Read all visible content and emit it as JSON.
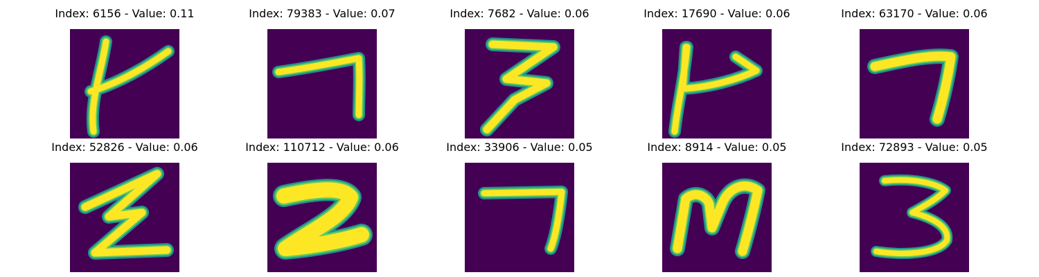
{
  "colors": {
    "background": "#440154",
    "stroke_core": "#fde725",
    "stroke_mid": "#5ec962",
    "stroke_edge": "#21918c"
  },
  "panels": [
    {
      "title": "Index: 6156 - Value: 0.11",
      "index": 6156,
      "value": 0.11,
      "glyph": "K"
    },
    {
      "title": "Index: 79383 - Value: 0.07",
      "index": 79383,
      "value": 0.07,
      "glyph": "7"
    },
    {
      "title": "Index: 7682 - Value: 0.06",
      "index": 7682,
      "value": 0.06,
      "glyph": "3"
    },
    {
      "title": "Index: 17690 - Value: 0.06",
      "index": 17690,
      "value": 0.06,
      "glyph": "P"
    },
    {
      "title": "Index: 63170 - Value: 0.06",
      "index": 63170,
      "value": 0.06,
      "glyph": "7"
    },
    {
      "title": "Index: 52826 - Value: 0.06",
      "index": 52826,
      "value": 0.06,
      "glyph": "Z"
    },
    {
      "title": "Index: 110712 - Value: 0.06",
      "index": 110712,
      "value": 0.06,
      "glyph": "2"
    },
    {
      "title": "Index: 33906 - Value: 0.05",
      "index": 33906,
      "value": 0.05,
      "glyph": "7"
    },
    {
      "title": "Index: 8914 - Value: 0.05",
      "index": 8914,
      "value": 0.05,
      "glyph": "M"
    },
    {
      "title": "Index: 72893 - Value: 0.05",
      "index": 72893,
      "value": 0.05,
      "glyph": "3"
    }
  ]
}
